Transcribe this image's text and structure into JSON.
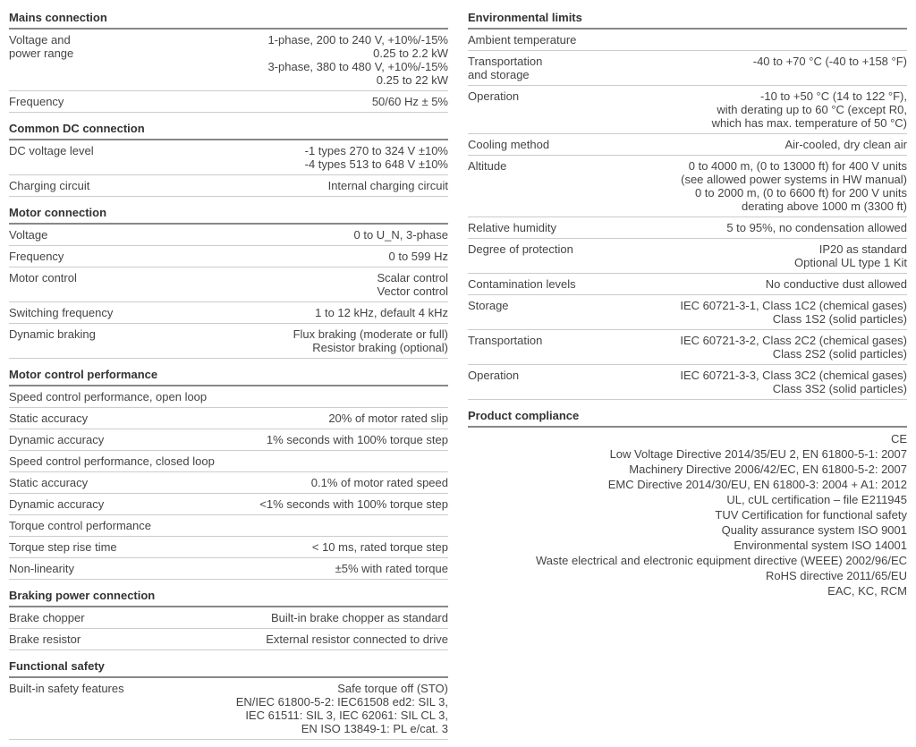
{
  "left": {
    "mains": {
      "header": "Mains connection",
      "rows": [
        {
          "label": "Voltage and\npower range",
          "value": [
            "1-phase, 200 to 240 V, +10%/-15%",
            "0.25 to 2.2 kW",
            "3-phase, 380 to 480 V, +10%/-15%",
            "0.25 to 22 kW"
          ]
        },
        {
          "label": "Frequency",
          "value": [
            "50/60 Hz ± 5%"
          ]
        }
      ]
    },
    "dc": {
      "header": "Common DC connection",
      "rows": [
        {
          "label": "DC voltage level",
          "value": [
            "-1 types 270 to 324 V ±10%",
            "-4 types 513 to 648 V ±10%"
          ]
        },
        {
          "label": "Charging circuit",
          "value": [
            "Internal charging circuit"
          ]
        }
      ]
    },
    "motor": {
      "header": "Motor connection",
      "rows": [
        {
          "label": "Voltage",
          "value": [
            "0 to U_N, 3-phase"
          ]
        },
        {
          "label": "Frequency",
          "value": [
            "0 to 599 Hz"
          ]
        },
        {
          "label": "Motor control",
          "value": [
            "Scalar control",
            "Vector control"
          ]
        },
        {
          "label": "Switching frequency",
          "value": [
            "1 to 12 kHz, default 4 kHz"
          ]
        },
        {
          "label": "Dynamic braking",
          "value": [
            "Flux braking (moderate or full)",
            "Resistor braking (optional)"
          ]
        }
      ]
    },
    "mcp": {
      "header": "Motor control performance",
      "sub1": "Speed control performance, open loop",
      "rows1": [
        {
          "label": "Static accuracy",
          "value": [
            "20% of motor rated slip"
          ]
        },
        {
          "label": "Dynamic accuracy",
          "value": [
            "1% seconds with 100% torque step"
          ]
        }
      ],
      "sub2": "Speed control performance, closed loop",
      "rows2": [
        {
          "label": "Static accuracy",
          "value": [
            "0.1% of motor rated speed"
          ]
        },
        {
          "label": "Dynamic accuracy",
          "value": [
            "<1% seconds with 100% torque step"
          ]
        }
      ],
      "sub3": "Torque control performance",
      "rows3": [
        {
          "label": "Torque step rise time",
          "value": [
            "< 10 ms, rated torque step"
          ]
        },
        {
          "label": "Non-linearity",
          "value": [
            "±5% with rated torque"
          ]
        }
      ]
    },
    "braking": {
      "header": "Braking power connection",
      "rows": [
        {
          "label": "Brake chopper",
          "value": [
            "Built-in brake chopper as standard"
          ]
        },
        {
          "label": "Brake resistor",
          "value": [
            "External resistor connected to drive"
          ]
        }
      ]
    },
    "safety": {
      "header": "Functional safety",
      "rows": [
        {
          "label": "Built-in safety features",
          "value": [
            "Safe torque off (STO)",
            "EN/IEC 61800-5-2: IEC61508 ed2: SIL 3,",
            "IEC 61511: SIL 3, IEC 62061: SIL CL 3,",
            "EN ISO 13849-1: PL e/cat. 3"
          ]
        }
      ]
    }
  },
  "right": {
    "env": {
      "header": "Environmental limits",
      "sub": "Ambient temperature",
      "rows": [
        {
          "label": "Transportation\nand storage",
          "value": [
            "-40 to +70 °C (-40 to +158 °F)"
          ]
        },
        {
          "label": "Operation",
          "value": [
            "-10 to +50 °C (14 to 122 °F),",
            "with derating up to 60 °C (except R0,",
            "which has max. temperature of 50 °C)"
          ]
        },
        {
          "label": "Cooling method",
          "value": [
            "Air-cooled, dry clean air"
          ]
        },
        {
          "label": "Altitude",
          "value": [
            "0 to 4000 m, (0 to 13000 ft) for 400 V units",
            "(see allowed power systems in HW manual)",
            "0 to 2000 m, (0 to 6600 ft) for 200 V units",
            "derating above 1000 m (3300 ft)"
          ]
        },
        {
          "label": "Relative humidity",
          "value": [
            "5 to 95%, no condensation allowed"
          ]
        },
        {
          "label": "Degree of protection",
          "value": [
            "IP20 as standard",
            "Optional UL type 1 Kit"
          ]
        },
        {
          "label": "Contamination levels",
          "value": [
            "No conductive dust allowed"
          ]
        },
        {
          "label": "Storage",
          "value": [
            "IEC 60721-3-1, Class 1C2 (chemical gases)",
            "Class 1S2 (solid particles)"
          ]
        },
        {
          "label": "Transportation",
          "value": [
            "IEC 60721-3-2, Class 2C2 (chemical gases)",
            "Class 2S2 (solid particles)"
          ]
        },
        {
          "label": "Operation",
          "value": [
            "IEC 60721-3-3, Class 3C2 (chemical gases)",
            "Class 3S2 (solid particles)"
          ]
        }
      ]
    },
    "compliance": {
      "header": "Product compliance",
      "lines": [
        "CE",
        "Low Voltage Directive 2014/35/EU 2, EN 61800-5-1: 2007",
        "Machinery Directive 2006/42/EC, EN 61800-5-2: 2007",
        "EMC Directive 2014/30/EU, EN 61800-3: 2004 + A1: 2012",
        "UL, cUL certification – file E211945",
        "TUV Certification for functional safety",
        "Quality assurance system ISO 9001",
        "Environmental system ISO 14001",
        "Waste electrical and electronic equipment directive (WEEE) 2002/96/EC",
        "RoHS directive 2011/65/EU",
        "EAC, KC, RCM"
      ]
    }
  }
}
